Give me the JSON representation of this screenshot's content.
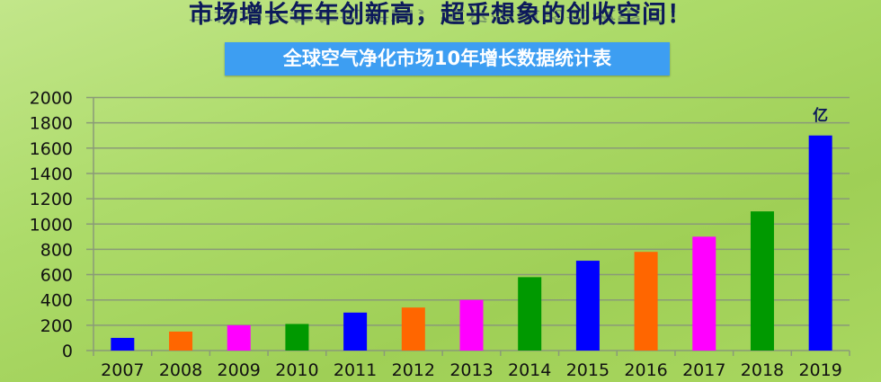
{
  "headline": "市场增长年年创新高，超乎想象的创收空间！",
  "banner": "全球空气净化市场10年增长数据统计表",
  "chart_data": {
    "type": "bar",
    "title": "全球空气净化市场10年增长数据统计表",
    "unit_label": "亿",
    "categories": [
      "2007",
      "2008",
      "2009",
      "2010",
      "2011",
      "2012",
      "2013",
      "2014",
      "2015",
      "2016",
      "2017",
      "2018",
      "2019"
    ],
    "values": [
      100,
      150,
      200,
      210,
      300,
      340,
      400,
      580,
      710,
      780,
      900,
      1100,
      1700
    ],
    "colors": [
      "#0000ff",
      "#ff6600",
      "#ff00ff",
      "#009900",
      "#0000ff",
      "#ff6600",
      "#ff00ff",
      "#009900",
      "#0000ff",
      "#ff6600",
      "#ff00ff",
      "#009900",
      "#0000ff"
    ],
    "ylim": [
      0,
      2000
    ],
    "yticks": [
      "0",
      "200",
      "400",
      "600",
      "800",
      "1000",
      "1200",
      "1400",
      "1600",
      "1800",
      "2000"
    ],
    "grid": true,
    "xlabel": "",
    "ylabel": ""
  }
}
